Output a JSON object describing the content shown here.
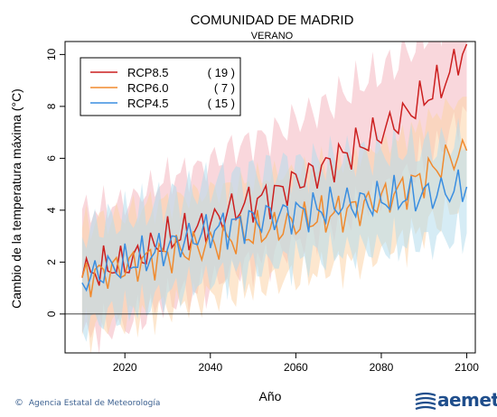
{
  "chart_data": {
    "type": "line",
    "title": "COMUNIDAD DE MADRID",
    "subtitle": "VERANO",
    "xlabel": "Año",
    "ylabel": "Cambio de la temperatura máxima (°C)",
    "xlim": [
      2006,
      2102
    ],
    "ylim": [
      -1.5,
      10.5
    ],
    "xticks": [
      2020,
      2040,
      2060,
      2080,
      2100
    ],
    "yticks": [
      0,
      2,
      4,
      6,
      8,
      10
    ],
    "zero_line": true,
    "legend_position": "top-left",
    "series": [
      {
        "name": "RCP8.5",
        "count": "( 19 )",
        "color": "#cc1f1f",
        "band_color": "#f4b6bf",
        "x": [
          2010,
          2015,
          2020,
          2025,
          2030,
          2035,
          2040,
          2045,
          2050,
          2055,
          2060,
          2065,
          2070,
          2075,
          2080,
          2085,
          2090,
          2095,
          2100
        ],
        "y": [
          1.4,
          1.8,
          1.9,
          2.4,
          2.9,
          3.1,
          3.5,
          4.0,
          4.3,
          4.6,
          5.1,
          5.5,
          6.0,
          6.5,
          7.0,
          7.6,
          8.3,
          9.0,
          10.4
        ]
      },
      {
        "name": "RCP6.0",
        "count": "( 7 )",
        "color": "#f08a2e",
        "band_color": "#fbd3a8",
        "x": [
          2010,
          2015,
          2020,
          2025,
          2030,
          2035,
          2040,
          2045,
          2050,
          2055,
          2060,
          2065,
          2070,
          2075,
          2080,
          2085,
          2090,
          2095,
          2100
        ],
        "y": [
          1.4,
          1.6,
          1.8,
          2.1,
          2.3,
          2.5,
          2.7,
          2.9,
          3.1,
          3.3,
          3.5,
          3.7,
          3.9,
          4.1,
          4.4,
          4.8,
          5.3,
          5.9,
          6.3
        ]
      },
      {
        "name": "RCP4.5",
        "count": "( 15 )",
        "color": "#3a8ee0",
        "band_color": "#b5dcec",
        "x": [
          2010,
          2015,
          2020,
          2025,
          2030,
          2035,
          2040,
          2045,
          2050,
          2055,
          2060,
          2065,
          2070,
          2075,
          2080,
          2085,
          2090,
          2095,
          2100
        ],
        "y": [
          1.2,
          1.7,
          1.9,
          2.2,
          2.6,
          2.9,
          3.2,
          3.4,
          3.6,
          3.8,
          3.9,
          4.0,
          4.2,
          4.3,
          4.4,
          4.5,
          4.6,
          4.7,
          4.9
        ]
      }
    ]
  },
  "footer": {
    "agency": "Agencia Estatal de Meteorología",
    "logo": "aemet"
  }
}
